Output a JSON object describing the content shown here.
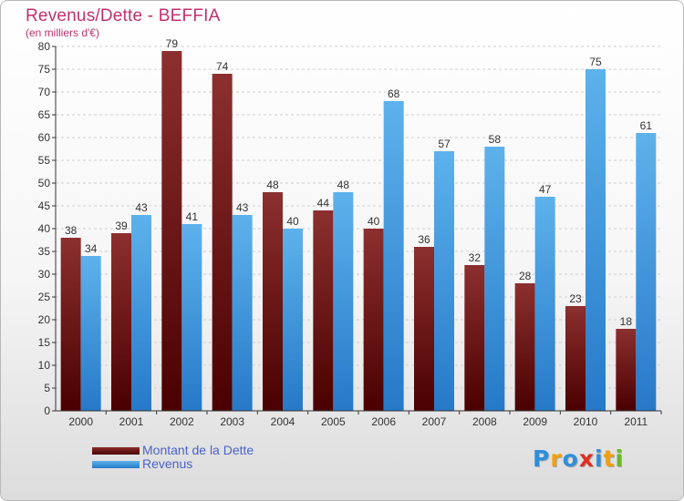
{
  "header": {
    "title": "Revenus/Dette - BEFFIA",
    "subtitle": "(en milliers d'€)"
  },
  "legend": {
    "items": [
      {
        "label": "Montant de la Dette",
        "color": "#6b0d0d"
      },
      {
        "label": "Revenus",
        "color": "#3a9be0"
      }
    ]
  },
  "logo": {
    "text": "Proxiti",
    "letters": [
      {
        "ch": "P",
        "color": "#2f8fd8"
      },
      {
        "ch": "r",
        "color": "#f0a010"
      },
      {
        "ch": "o",
        "color": "#2f8fd8"
      },
      {
        "ch": "x",
        "color": "#e03020"
      },
      {
        "ch": "i",
        "color": "#2f8fd8"
      },
      {
        "ch": "t",
        "color": "#f0a010"
      },
      {
        "ch": "i",
        "color": "#6ab82a"
      }
    ]
  },
  "chart_data": {
    "type": "bar",
    "title": "Revenus/Dette - BEFFIA",
    "subtitle": "(en milliers d'€)",
    "xlabel": "",
    "ylabel": "",
    "categories": [
      "2000",
      "2001",
      "2002",
      "2003",
      "2004",
      "2005",
      "2006",
      "2007",
      "2008",
      "2009",
      "2010",
      "2011"
    ],
    "series": [
      {
        "name": "Montant de la Dette",
        "values": [
          38,
          39,
          79,
          74,
          48,
          44,
          40,
          36,
          32,
          28,
          23,
          18
        ],
        "color": "#6b0d0d"
      },
      {
        "name": "Revenus",
        "values": [
          34,
          43,
          41,
          43,
          40,
          48,
          68,
          57,
          58,
          47,
          75,
          61
        ],
        "color": "#3a9be0"
      }
    ],
    "ylim": [
      0,
      80
    ],
    "yticks": [
      0,
      5,
      10,
      15,
      20,
      25,
      30,
      35,
      40,
      45,
      50,
      55,
      60,
      65,
      70,
      75,
      80
    ],
    "grid": true,
    "legend": "bottom-left"
  }
}
